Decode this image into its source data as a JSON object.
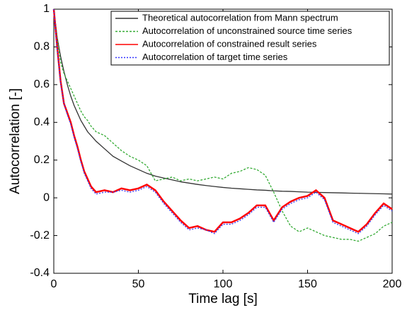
{
  "chart_data": {
    "type": "line",
    "x_label": "Time lag [s]",
    "y_label": "Autocorrelation [-]",
    "x": [
      0,
      2,
      4,
      6,
      8,
      10,
      12,
      14,
      16,
      18,
      20,
      22,
      25,
      30,
      35,
      40,
      45,
      50,
      55,
      60,
      65,
      70,
      75,
      80,
      85,
      90,
      95,
      100,
      105,
      110,
      115,
      120,
      125,
      130,
      135,
      140,
      145,
      150,
      155,
      160,
      165,
      170,
      175,
      180,
      185,
      190,
      195,
      200
    ],
    "series": [
      {
        "name": "Theoretical autocorrelation from Mann spectrum",
        "color": "#333333",
        "dash": "none",
        "values": [
          1,
          0.85,
          0.75,
          0.67,
          0.6,
          0.54,
          0.49,
          0.45,
          0.41,
          0.38,
          0.35,
          0.33,
          0.3,
          0.26,
          0.22,
          0.195,
          0.17,
          0.15,
          0.13,
          0.115,
          0.105,
          0.095,
          0.085,
          0.078,
          0.071,
          0.065,
          0.06,
          0.055,
          0.051,
          0.048,
          0.045,
          0.042,
          0.04,
          0.037,
          0.035,
          0.034,
          0.032,
          0.03,
          0.029,
          0.028,
          0.027,
          0.026,
          0.025,
          0.024,
          0.023,
          0.022,
          0.021,
          0.02
        ]
      },
      {
        "name": "Autocorrelation of unconstrained source time series",
        "color": "#33aa33",
        "dash": "3,2",
        "values": [
          1,
          0.85,
          0.72,
          0.66,
          0.62,
          0.58,
          0.54,
          0.5,
          0.46,
          0.43,
          0.41,
          0.38,
          0.35,
          0.33,
          0.29,
          0.25,
          0.22,
          0.2,
          0.17,
          0.09,
          0.1,
          0.11,
          0.09,
          0.1,
          0.09,
          0.1,
          0.11,
          0.1,
          0.13,
          0.14,
          0.16,
          0.15,
          0.12,
          0.03,
          -0.07,
          -0.15,
          -0.18,
          -0.16,
          -0.18,
          -0.2,
          -0.21,
          -0.22,
          -0.22,
          -0.23,
          -0.21,
          -0.19,
          -0.15,
          -0.13
        ]
      },
      {
        "name": "Autocorrelation of constrained result series",
        "color": "#ff0000",
        "dash": "none",
        "values": [
          1,
          0.8,
          0.62,
          0.5,
          0.45,
          0.4,
          0.33,
          0.27,
          0.2,
          0.14,
          0.1,
          0.06,
          0.03,
          0.04,
          0.03,
          0.05,
          0.04,
          0.05,
          0.07,
          0.04,
          -0.02,
          -0.07,
          -0.12,
          -0.16,
          -0.15,
          -0.17,
          -0.18,
          -0.13,
          -0.13,
          -0.11,
          -0.08,
          -0.04,
          -0.04,
          -0.12,
          -0.05,
          -0.02,
          0.0,
          0.01,
          0.04,
          0.0,
          -0.12,
          -0.14,
          -0.16,
          -0.18,
          -0.14,
          -0.08,
          -0.03,
          -0.06
        ]
      },
      {
        "name": "Autocorrelation of target time series",
        "color": "#3333ff",
        "dash": "2,2",
        "values": [
          1,
          0.79,
          0.61,
          0.5,
          0.44,
          0.39,
          0.32,
          0.26,
          0.19,
          0.13,
          0.09,
          0.05,
          0.02,
          0.03,
          0.03,
          0.04,
          0.03,
          0.04,
          0.06,
          0.03,
          -0.03,
          -0.08,
          -0.13,
          -0.17,
          -0.16,
          -0.17,
          -0.19,
          -0.14,
          -0.14,
          -0.12,
          -0.09,
          -0.05,
          -0.05,
          -0.13,
          -0.06,
          -0.03,
          -0.01,
          0.0,
          0.03,
          -0.01,
          -0.13,
          -0.15,
          -0.17,
          -0.19,
          -0.15,
          -0.09,
          -0.04,
          -0.07
        ]
      }
    ],
    "xlim": [
      0,
      200
    ],
    "xticks": [
      0,
      50,
      100,
      150,
      200
    ],
    "ylim": [
      -0.4,
      1
    ],
    "yticks": [
      -0.4,
      -0.2,
      0,
      0.2,
      0.4,
      0.6,
      0.8,
      1
    ],
    "grid": false,
    "legend": "upper-right"
  }
}
